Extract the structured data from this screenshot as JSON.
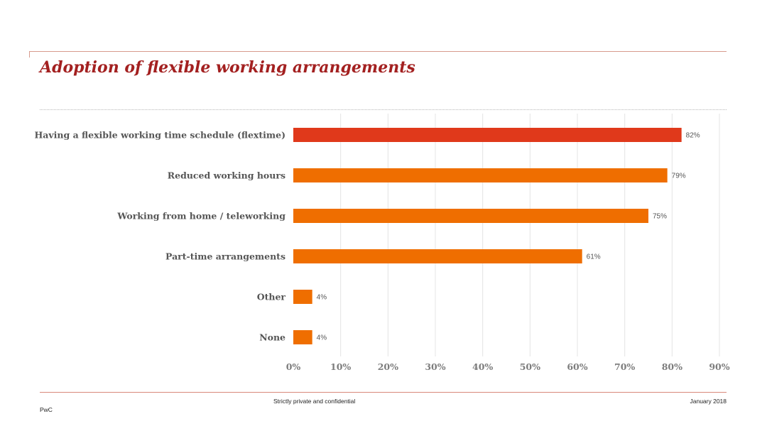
{
  "slide": {
    "title": "Adoption of flexible working arrangements",
    "footer_center": "Strictly private and confidential",
    "footer_date": "January 2018",
    "footer_brand": "PwC"
  },
  "chart_data": {
    "type": "bar",
    "orientation": "horizontal",
    "categories": [
      "Having a flexible working time schedule (flextime)",
      "Reduced working hours",
      "Working from home / teleworking",
      "Part-time arrangements",
      "Other",
      "None"
    ],
    "values": [
      82,
      79,
      75,
      61,
      4,
      4
    ],
    "value_labels": [
      "82%",
      "79%",
      "75%",
      "61%",
      "4%",
      "4%"
    ],
    "xlim": [
      0,
      90
    ],
    "x_ticks": [
      "0%",
      "10%",
      "20%",
      "30%",
      "40%",
      "50%",
      "60%",
      "70%",
      "80%",
      "90%"
    ],
    "grid": true,
    "colors": {
      "highlight": "#e0391b",
      "bar": "#ef6e00",
      "grid": "#e4e4e4"
    }
  }
}
